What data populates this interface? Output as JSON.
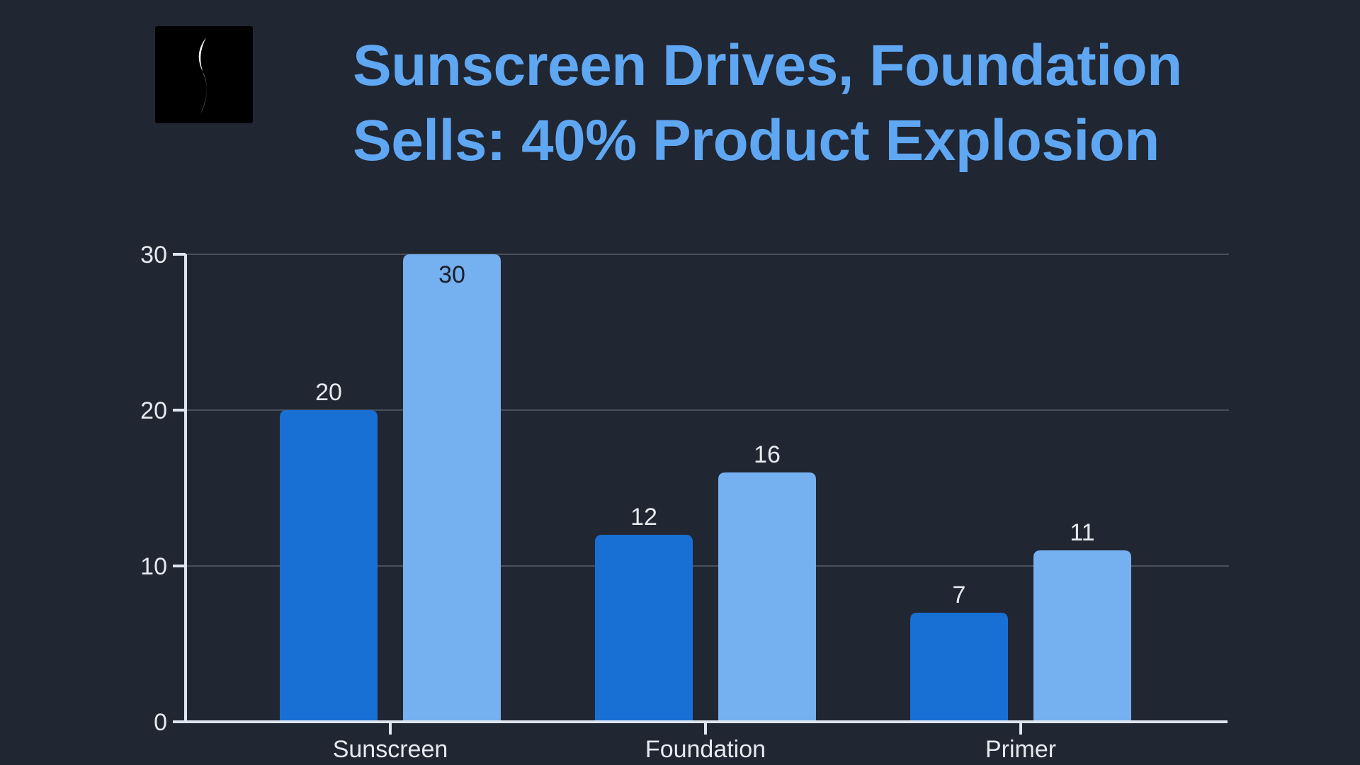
{
  "header": {
    "title_line1": "Sunscreen Drives, Foundation",
    "title_line2": "Sells: 40% Product Explosion",
    "logo_icon": "sephora-s-logo-icon"
  },
  "colors": {
    "background": "#202632",
    "title": "#5fa7f2",
    "series_1": "#1870d5",
    "series_2": "#75b0f1",
    "axis": "#dfe5ee",
    "grid": "#4a505b",
    "label_light": "#e6e9ee",
    "label_dark": "#1a1f28"
  },
  "chart_data": {
    "type": "bar",
    "title": "Sunscreen Drives, Foundation Sells: 40% Product Explosion",
    "categories": [
      "Sunscreen",
      "Foundation",
      "Primer"
    ],
    "series": [
      {
        "values": [
          20,
          12,
          7
        ]
      },
      {
        "values": [
          30,
          16,
          11
        ]
      }
    ],
    "yticks": [
      0,
      10,
      20,
      30
    ],
    "ylim": [
      0,
      30
    ],
    "grid": true,
    "data_labels": true,
    "legend": "none"
  }
}
